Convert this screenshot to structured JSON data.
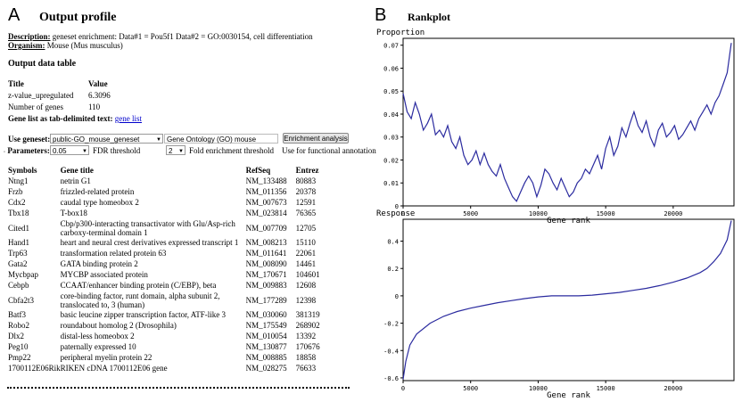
{
  "panel_a": {
    "letter": "A",
    "title": "Output profile",
    "description_label": "Description:",
    "description_text": "geneset enrichment: Data#1 = Pou5f1 Data#2 = GO:0030154, cell differentiation",
    "organism_label": "Organism:",
    "organism_text": "Mouse (Mus musculus)",
    "output_table_title": "Output data table",
    "summary_headers": [
      "Title",
      "Value"
    ],
    "summary_rows": [
      {
        "title": "z-value_upregulated",
        "value": "6.3096"
      },
      {
        "title": "Number of genes",
        "value": "110"
      }
    ],
    "gene_list_label": "Gene list as tab-delimited text:",
    "gene_list_link": "gene list",
    "use_geneset_label": "Use geneset:",
    "geneset_select": "public-GO_mouse_geneset",
    "geneset_name": "Gene Ontology (GO) mouse",
    "enrich_button": "Enrichment analysis",
    "parameters_label": "Parameters:",
    "fdr_value": "0.05",
    "fdr_label": "FDR threshold",
    "fold_value": "2",
    "fold_label": "Fold enrichment threshold",
    "functional_text": "Use for functional annotation",
    "gene_headers": [
      "Symbols",
      "Gene title",
      "RefSeq",
      "Entrez"
    ],
    "genes": [
      {
        "symbol": "Ntng1",
        "title": "netrin G1",
        "refseq": "NM_133488",
        "entrez": "80883"
      },
      {
        "symbol": "Frzb",
        "title": "frizzled-related protein",
        "refseq": "NM_011356",
        "entrez": "20378"
      },
      {
        "symbol": "Cdx2",
        "title": "caudal type homeobox 2",
        "refseq": "NM_007673",
        "entrez": "12591"
      },
      {
        "symbol": "Tbx18",
        "title": "T-box18",
        "refseq": "NM_023814",
        "entrez": "76365"
      },
      {
        "symbol": "Cited1",
        "title": "Cbp/p300-interacting transactivator with Glu/Asp-rich carboxy-terminal domain 1",
        "refseq": "NM_007709",
        "entrez": "12705"
      },
      {
        "symbol": "Hand1",
        "title": "heart and neural crest derivatives expressed transcript 1",
        "refseq": "NM_008213",
        "entrez": "15110"
      },
      {
        "symbol": "Trp63",
        "title": "transformation related protein 63",
        "refseq": "NM_011641",
        "entrez": "22061"
      },
      {
        "symbol": "Gata2",
        "title": "GATA binding protein 2",
        "refseq": "NM_008090",
        "entrez": "14461"
      },
      {
        "symbol": "Mycbpap",
        "title": "MYCBP associated protein",
        "refseq": "NM_170671",
        "entrez": "104601"
      },
      {
        "symbol": "Cebpb",
        "title": "CCAAT/enhancer binding protein (C/EBP), beta",
        "refseq": "NM_009883",
        "entrez": "12608"
      },
      {
        "symbol": "Cbfa2t3",
        "title": "core-binding factor, runt domain, alpha subunit 2, translocated to, 3 (human)",
        "refseq": "NM_177289",
        "entrez": "12398"
      },
      {
        "symbol": "Batf3",
        "title": "basic leucine zipper transcription factor, ATF-like 3",
        "refseq": "NM_030060",
        "entrez": "381319"
      },
      {
        "symbol": "Robo2",
        "title": "roundabout homolog 2 (Drosophila)",
        "refseq": "NM_175549",
        "entrez": "268902"
      },
      {
        "symbol": "Dlx2",
        "title": "distal-less homeobox 2",
        "refseq": "NM_010054",
        "entrez": "13392"
      },
      {
        "symbol": "Peg10",
        "title": "paternally expressed 10",
        "refseq": "NM_130877",
        "entrez": "170676"
      },
      {
        "symbol": "Pmp22",
        "title": "peripheral myelin protein 22",
        "refseq": "NM_008885",
        "entrez": "18858"
      },
      {
        "symbol": "1700112E06Rik",
        "title": "RIKEN cDNA 1700112E06 gene",
        "refseq": "NM_028275",
        "entrez": "76633"
      }
    ]
  },
  "panel_b": {
    "letter": "B",
    "title": "Rankplot"
  },
  "chart_data": [
    {
      "type": "line",
      "ylabel": "Proportion",
      "xlabel": "Gene rank",
      "xlim": [
        0,
        24500
      ],
      "ylim": [
        0,
        0.073
      ],
      "xticks": [
        "0",
        "5000",
        "10000",
        "15000",
        "20000"
      ],
      "yticks": [
        "0",
        "0.01",
        "0.02",
        "0.03",
        "0.04",
        "0.05",
        "0.06",
        "0.07"
      ],
      "color": "#2b2b9f",
      "x": [
        0,
        300,
        600,
        900,
        1200,
        1500,
        1800,
        2100,
        2400,
        2700,
        3000,
        3300,
        3600,
        3900,
        4200,
        4500,
        4800,
        5100,
        5400,
        5700,
        6000,
        6300,
        6600,
        6900,
        7200,
        7500,
        7800,
        8100,
        8400,
        8700,
        9000,
        9300,
        9600,
        9900,
        10200,
        10500,
        10800,
        11100,
        11400,
        11700,
        12000,
        12300,
        12600,
        12900,
        13200,
        13500,
        13800,
        14100,
        14400,
        14700,
        15000,
        15300,
        15600,
        15900,
        16200,
        16500,
        16800,
        17100,
        17400,
        17700,
        18000,
        18300,
        18600,
        18900,
        19200,
        19500,
        19800,
        20100,
        20400,
        20700,
        21000,
        21300,
        21600,
        21900,
        22200,
        22500,
        22800,
        23100,
        23400,
        23700,
        24000,
        24300
      ],
      "values": [
        0.049,
        0.041,
        0.038,
        0.045,
        0.04,
        0.033,
        0.036,
        0.04,
        0.031,
        0.033,
        0.03,
        0.035,
        0.028,
        0.025,
        0.03,
        0.022,
        0.018,
        0.02,
        0.024,
        0.018,
        0.023,
        0.018,
        0.015,
        0.013,
        0.018,
        0.012,
        0.008,
        0.004,
        0.002,
        0.006,
        0.01,
        0.013,
        0.01,
        0.004,
        0.009,
        0.016,
        0.014,
        0.01,
        0.007,
        0.012,
        0.008,
        0.004,
        0.006,
        0.01,
        0.012,
        0.016,
        0.014,
        0.018,
        0.022,
        0.016,
        0.025,
        0.03,
        0.022,
        0.026,
        0.034,
        0.03,
        0.036,
        0.041,
        0.035,
        0.032,
        0.037,
        0.03,
        0.026,
        0.033,
        0.036,
        0.03,
        0.032,
        0.035,
        0.029,
        0.031,
        0.034,
        0.037,
        0.033,
        0.038,
        0.041,
        0.044,
        0.04,
        0.045,
        0.048,
        0.053,
        0.058,
        0.071
      ]
    },
    {
      "type": "line",
      "ylabel": "Response",
      "xlabel": "Gene rank",
      "xlim": [
        0,
        24500
      ],
      "ylim": [
        -0.62,
        0.56
      ],
      "xticks": [
        "0",
        "5000",
        "10000",
        "15000",
        "20000"
      ],
      "yticks": [
        "-0.6",
        "-0.4",
        "-0.2",
        "0",
        "0.2",
        "0.4"
      ],
      "color": "#2b2b9f",
      "x": [
        0,
        200,
        500,
        1000,
        2000,
        3000,
        4000,
        5000,
        6000,
        7000,
        8000,
        9000,
        10000,
        11000,
        12000,
        13000,
        14000,
        15000,
        16000,
        17000,
        18000,
        19000,
        20000,
        21000,
        22000,
        22500,
        23000,
        23500,
        24000,
        24300
      ],
      "values": [
        -0.61,
        -0.48,
        -0.36,
        -0.28,
        -0.2,
        -0.15,
        -0.115,
        -0.09,
        -0.07,
        -0.05,
        -0.035,
        -0.02,
        -0.008,
        0.0,
        0.0,
        0.0,
        0.005,
        0.015,
        0.025,
        0.04,
        0.055,
        0.075,
        0.1,
        0.13,
        0.17,
        0.2,
        0.25,
        0.31,
        0.41,
        0.55
      ]
    }
  ]
}
